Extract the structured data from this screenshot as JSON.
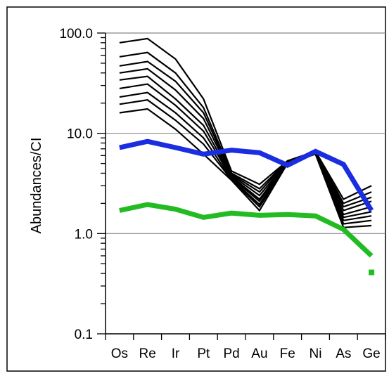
{
  "chart_data": {
    "type": "line",
    "title": "",
    "xlabel": "",
    "ylabel": "Abundances/CI",
    "y_scale": "log",
    "ylim": [
      0.1,
      100
    ],
    "y_ticks": [
      0.1,
      1.0,
      10.0,
      100.0
    ],
    "y_tick_labels": [
      "0.1",
      "1.0",
      "10.0",
      "100.0"
    ],
    "gridlines_y": [
      1.0,
      10.0,
      100.0
    ],
    "categories": [
      "Os",
      "Re",
      "Ir",
      "Pt",
      "Pd",
      "Au",
      "Fe",
      "Ni",
      "As",
      "Ge"
    ],
    "legend": "none",
    "series": [
      {
        "values": [
          80,
          88,
          55,
          22,
          4.2,
          3.1,
          5.3,
          6.6,
          2.2,
          3.0
        ],
        "color": "#000000",
        "style": "thin"
      },
      {
        "values": [
          58,
          64,
          40,
          18,
          4.0,
          2.8,
          5.3,
          6.6,
          2.0,
          2.6
        ],
        "color": "#000000",
        "style": "thin"
      },
      {
        "values": [
          47,
          52,
          33,
          16,
          3.9,
          2.6,
          5.3,
          6.6,
          1.85,
          2.3
        ],
        "color": "#000000",
        "style": "thin"
      },
      {
        "values": [
          40,
          44,
          27,
          14,
          3.8,
          2.4,
          5.2,
          6.5,
          1.7,
          2.1
        ],
        "color": "#000000",
        "style": "thin"
      },
      {
        "values": [
          34,
          37,
          22,
          12,
          3.7,
          2.2,
          5.2,
          6.5,
          1.55,
          1.85
        ],
        "color": "#000000",
        "style": "thin"
      },
      {
        "values": [
          28,
          31,
          19,
          10.5,
          3.6,
          2.1,
          5.1,
          6.4,
          1.45,
          1.65
        ],
        "color": "#000000",
        "style": "thin"
      },
      {
        "values": [
          23,
          25.5,
          16,
          9.0,
          3.5,
          1.95,
          5.1,
          6.4,
          1.35,
          1.5
        ],
        "color": "#000000",
        "style": "thin"
      },
      {
        "values": [
          19.5,
          21.5,
          13.5,
          7.8,
          3.45,
          1.85,
          5.0,
          6.3,
          1.25,
          1.35
        ],
        "color": "#000000",
        "style": "thin"
      },
      {
        "values": [
          16,
          17.5,
          11,
          6.2,
          3.4,
          1.7,
          5.0,
          6.2,
          1.15,
          1.2
        ],
        "color": "#000000",
        "style": "thin"
      },
      {
        "values": [
          7.2,
          8.3,
          7.2,
          6.2,
          6.8,
          6.4,
          4.8,
          6.6,
          4.9,
          1.7
        ],
        "color": "#1a2de0",
        "style": "thick"
      },
      {
        "values": [
          1.7,
          1.95,
          1.75,
          1.45,
          1.6,
          1.52,
          1.55,
          1.5,
          1.1,
          0.6
        ],
        "color": "#22bb22",
        "style": "thick"
      },
      {
        "values": [
          null,
          null,
          null,
          null,
          null,
          null,
          null,
          null,
          null,
          0.41
        ],
        "color": "#22bb22",
        "style": "point"
      }
    ]
  }
}
